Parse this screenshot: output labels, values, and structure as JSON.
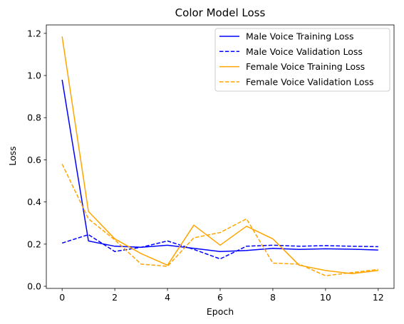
{
  "chart_data": {
    "type": "line",
    "title": "Color Model Loss",
    "xlabel": "Epoch",
    "ylabel": "Loss",
    "xlim": [
      -0.6,
      12.6
    ],
    "ylim": [
      -0.01,
      1.24
    ],
    "xticks": [
      0,
      2,
      4,
      6,
      8,
      10,
      12
    ],
    "yticks": [
      0.0,
      0.2,
      0.4,
      0.6,
      0.8,
      1.0,
      1.2
    ],
    "xtick_labels": [
      "0",
      "2",
      "4",
      "6",
      "8",
      "10",
      "12"
    ],
    "ytick_labels": [
      "0.0",
      "0.2",
      "0.4",
      "0.6",
      "0.8",
      "1.0",
      "1.2"
    ],
    "grid": false,
    "legend_position": "top-right",
    "x": [
      0,
      1,
      2,
      3,
      4,
      5,
      6,
      7,
      8,
      9,
      10,
      11,
      12
    ],
    "series": [
      {
        "name": "Male Voice Training Loss",
        "color": "#0000ff",
        "style": "solid",
        "values": [
          0.98,
          0.215,
          0.19,
          0.185,
          0.195,
          0.18,
          0.165,
          0.17,
          0.18,
          0.175,
          0.178,
          0.176,
          0.172
        ]
      },
      {
        "name": "Male Voice Validation Loss",
        "color": "#0000ff",
        "style": "dashed",
        "values": [
          0.205,
          0.245,
          0.165,
          0.185,
          0.215,
          0.175,
          0.13,
          0.19,
          0.195,
          0.19,
          0.193,
          0.19,
          0.188
        ]
      },
      {
        "name": "Female Voice Training Loss",
        "color": "#ffa500",
        "style": "solid",
        "values": [
          1.185,
          0.355,
          0.225,
          0.155,
          0.1,
          0.29,
          0.195,
          0.285,
          0.225,
          0.1,
          0.075,
          0.06,
          0.075
        ]
      },
      {
        "name": "Female Voice Validation Loss",
        "color": "#ffa500",
        "style": "dashed",
        "values": [
          0.58,
          0.32,
          0.22,
          0.105,
          0.095,
          0.23,
          0.255,
          0.32,
          0.11,
          0.105,
          0.05,
          0.065,
          0.08
        ]
      }
    ]
  }
}
